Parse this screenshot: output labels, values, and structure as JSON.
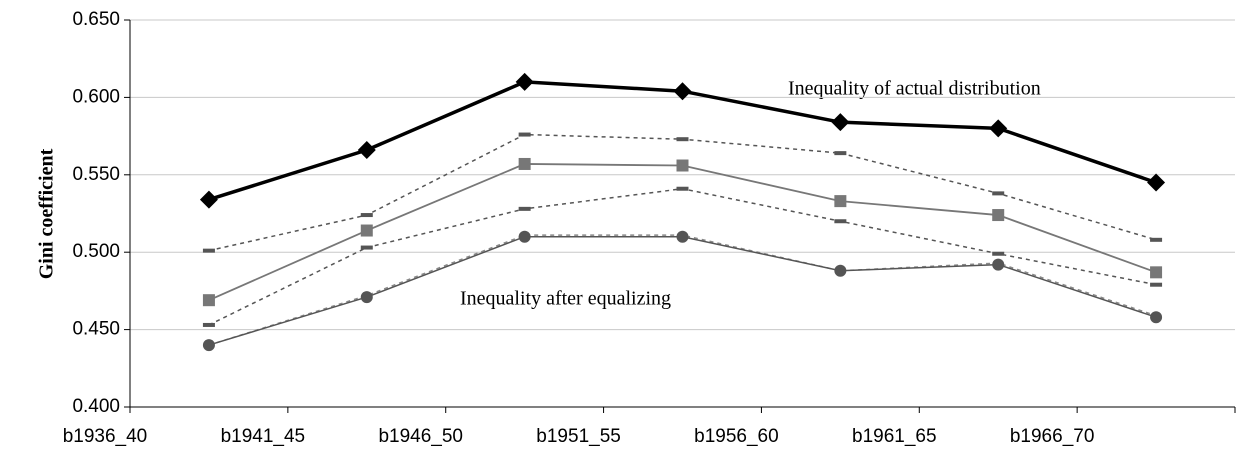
{
  "chart_data": {
    "type": "line",
    "y_label": "Gini coefficient",
    "categories": [
      "b1936_40",
      "b1941_45",
      "b1946_50",
      "b1951_55",
      "b1956_60",
      "b1961_65",
      "b1966_70"
    ],
    "ylim": [
      0.4,
      0.65
    ],
    "yticks": [
      {
        "value": 0.4,
        "label": "0.400"
      },
      {
        "value": 0.45,
        "label": "0.450"
      },
      {
        "value": 0.5,
        "label": "0.500"
      },
      {
        "value": 0.55,
        "label": "0.550"
      },
      {
        "value": 0.6,
        "label": "0.600"
      },
      {
        "value": 0.65,
        "label": "0.650"
      }
    ],
    "grid": true,
    "annotations": [
      "Inequality of actual distribution",
      "Inequality after equalizing"
    ],
    "series": [
      {
        "color": "#888888",
        "marker": "none",
        "dash": true,
        "width": 1.5,
        "values": [
          0.44,
          0.472,
          0.511,
          0.511,
          0.488,
          0.493,
          0.459
        ]
      },
      {
        "color": "#555555",
        "marker": "circle",
        "dash": false,
        "width": 1.5,
        "values": [
          0.44,
          0.471,
          0.51,
          0.51,
          0.488,
          0.492,
          0.458
        ]
      },
      {
        "color": "#555555",
        "marker": "dash",
        "dash": true,
        "width": 1.5,
        "values": [
          0.453,
          0.503,
          0.528,
          0.541,
          0.52,
          0.499,
          0.479
        ]
      },
      {
        "color": "#555555",
        "marker": "dash",
        "dash": true,
        "width": 1.5,
        "values": [
          0.501,
          0.524,
          0.576,
          0.573,
          0.564,
          0.538,
          0.508
        ]
      },
      {
        "color": "#777777",
        "marker": "square",
        "dash": false,
        "width": 1.8,
        "values": [
          0.469,
          0.514,
          0.557,
          0.556,
          0.533,
          0.524,
          0.487
        ]
      },
      {
        "color": "#000000",
        "marker": "diamond",
        "dash": false,
        "width": 3.5,
        "values": [
          0.534,
          0.566,
          0.61,
          0.604,
          0.584,
          0.58,
          0.545
        ]
      }
    ]
  }
}
